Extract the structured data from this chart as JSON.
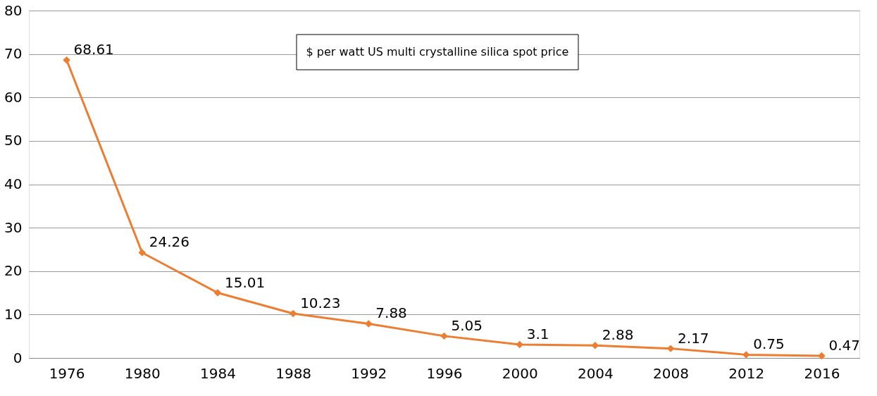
{
  "chart_data": {
    "type": "line",
    "categories": [
      "1976",
      "1980",
      "1984",
      "1988",
      "1992",
      "1996",
      "2000",
      "2004",
      "2008",
      "2012",
      "2016"
    ],
    "series": [
      {
        "color": "#ed7d31",
        "values": [
          68.61,
          24.26,
          15.01,
          10.23,
          7.88,
          5.05,
          3.1,
          2.88,
          2.17,
          0.75,
          0.47
        ]
      }
    ],
    "ylim": [
      0,
      80
    ],
    "yticks": [
      0,
      10,
      20,
      30,
      40,
      50,
      60,
      70,
      80
    ],
    "grid": "y",
    "marker": "diamond",
    "line_style": "solid",
    "data_labels": true,
    "annotations": [
      "$ per watt US multi crystalline silica spot price"
    ]
  }
}
